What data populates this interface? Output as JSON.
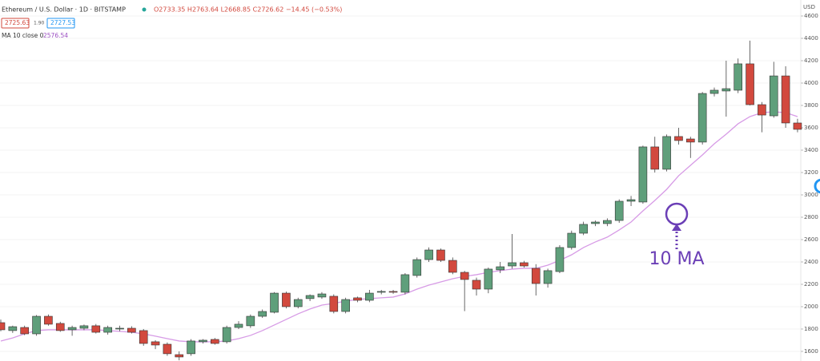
{
  "header": {
    "symbol": "Ethereum / U.S. Dollar · 1D · BITSTAMP",
    "ohlc": "O2733.35 H2763.64 L2668.85 C2726.62 −14.45 (−0.53%)",
    "bid": "2725.63",
    "spread": "1.90",
    "ask": "2727.53",
    "indicator": "MA 10 close 0",
    "indicator_value": "2576.54"
  },
  "chart_data": {
    "type": "candlestick",
    "annotation": "10 MA",
    "y_axis_label": "USD",
    "ylim": [
      1514,
      4743
    ],
    "yticks": [
      4600,
      4400,
      4200,
      4000,
      3800,
      3600,
      3400,
      3200,
      3000,
      2800,
      2600,
      2400,
      2200,
      2000,
      1800,
      1600
    ],
    "grid": true,
    "up_color": "#5f9f7b",
    "down_color": "#d2493e",
    "open": [
      1857,
      1786,
      1814,
      1757,
      1914,
      1850,
      1793,
      1807,
      1829,
      1771,
      1800,
      1807,
      1786,
      1686,
      1664,
      1571,
      1579,
      1686,
      1707,
      1686,
      1814,
      1829,
      1914,
      1950,
      2121,
      2000,
      2072,
      2086,
      2093,
      1957,
      2079,
      2057,
      2129,
      2136,
      2129,
      2279,
      2421,
      2507,
      2414,
      2307,
      2236,
      2157,
      2329,
      2364,
      2393,
      2343,
      2207,
      2314,
      2529,
      2657,
      2743,
      2743,
      2771,
      2943,
      2936,
      3429,
      3229,
      3522,
      3500,
      3472,
      3907,
      3929,
      3936,
      4172,
      3807,
      3707,
      4064,
      3643
    ],
    "high": [
      1885,
      1830,
      1830,
      1925,
      1930,
      1865,
      1830,
      1840,
      1845,
      1830,
      1830,
      1825,
      1800,
      1700,
      1680,
      1600,
      1710,
      1710,
      1720,
      1830,
      1870,
      1930,
      1975,
      2130,
      2135,
      2080,
      2110,
      2130,
      2110,
      2080,
      2090,
      2150,
      2150,
      2150,
      2300,
      2440,
      2530,
      2520,
      2440,
      2320,
      2260,
      2350,
      2400,
      2650,
      2410,
      2380,
      2340,
      2550,
      2680,
      2760,
      2770,
      2790,
      2960,
      2990,
      3440,
      3520,
      3540,
      3600,
      3520,
      3920,
      3960,
      4200,
      4220,
      4380,
      3830,
      4190,
      4150,
      3680
    ],
    "low": [
      1780,
      1765,
      1745,
      1740,
      1830,
      1775,
      1740,
      1790,
      1760,
      1750,
      1780,
      1760,
      1650,
      1620,
      1560,
      1520,
      1560,
      1670,
      1660,
      1670,
      1800,
      1810,
      1900,
      1940,
      1985,
      1985,
      2050,
      2070,
      1940,
      1940,
      2040,
      2040,
      2110,
      2115,
      2110,
      2260,
      2400,
      2400,
      2290,
      1960,
      2100,
      2120,
      2300,
      2340,
      2350,
      2100,
      2170,
      2300,
      2510,
      2640,
      2720,
      2720,
      2750,
      2900,
      2920,
      3200,
      3210,
      3450,
      3330,
      3450,
      3880,
      3700,
      3910,
      3800,
      3560,
      3690,
      3600,
      3560
    ],
    "close": [
      1793,
      1821,
      1757,
      1914,
      1843,
      1786,
      1814,
      1829,
      1771,
      1814,
      1807,
      1771,
      1671,
      1657,
      1579,
      1550,
      1693,
      1700,
      1671,
      1814,
      1843,
      1914,
      1957,
      2121,
      2000,
      2064,
      2100,
      2114,
      1957,
      2064,
      2057,
      2121,
      2136,
      2129,
      2286,
      2421,
      2507,
      2414,
      2307,
      2243,
      2157,
      2336,
      2357,
      2393,
      2364,
      2207,
      2322,
      2529,
      2657,
      2736,
      2757,
      2771,
      2943,
      2957,
      3429,
      3229,
      3522,
      3486,
      3472,
      3907,
      3936,
      3950,
      4172,
      3807,
      3714,
      4064,
      3643,
      3586
    ],
    "ma": {
      "name": "MA 10",
      "color": "#d79be6",
      "values": [
        1693,
        1720,
        1757,
        1786,
        1793,
        1793,
        1793,
        1793,
        1793,
        1786,
        1779,
        1771,
        1757,
        1736,
        1714,
        1693,
        1686,
        1686,
        1686,
        1693,
        1714,
        1743,
        1786,
        1836,
        1886,
        1936,
        1979,
        2014,
        2029,
        2050,
        2064,
        2072,
        2079,
        2086,
        2114,
        2157,
        2193,
        2221,
        2250,
        2271,
        2286,
        2307,
        2322,
        2336,
        2343,
        2343,
        2371,
        2414,
        2464,
        2529,
        2579,
        2622,
        2686,
        2757,
        2857,
        2950,
        3050,
        3171,
        3264,
        3357,
        3457,
        3543,
        3636,
        3700,
        3736,
        3743,
        3736,
        3700
      ]
    }
  }
}
